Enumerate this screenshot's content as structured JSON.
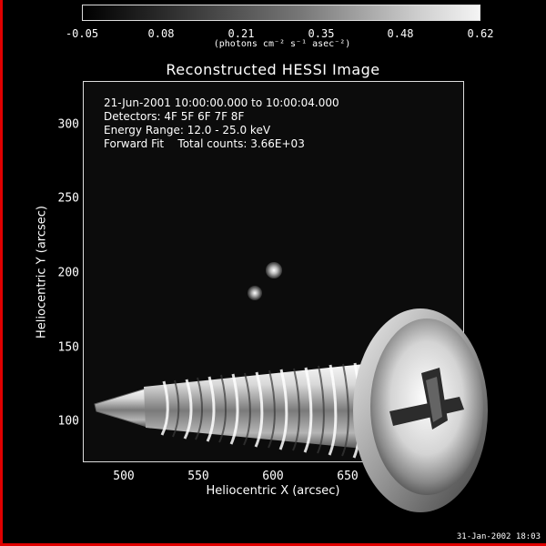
{
  "colorbar": {
    "tick_labels": [
      "-0.05",
      "0.08",
      "0.21",
      "0.35",
      "0.48",
      "0.62"
    ],
    "units": "(photons cm⁻² s⁻¹ asec⁻²)"
  },
  "plot": {
    "title": "Reconstructed HESSI Image",
    "info_lines": [
      "21-Jun-2001 10:00:00.000 to 10:00:04.000",
      "Detectors: 4F 5F 6F 7F 8F",
      "Energy Range: 12.0 - 25.0 keV",
      "Forward Fit    Total counts: 3.66E+03"
    ],
    "xlabel": "Heliocentric X (arcsec)",
    "ylabel": "Heliocentric Y (arcsec)",
    "x_ticks": [
      "500",
      "550",
      "600",
      "650"
    ],
    "y_ticks": [
      "300",
      "250",
      "200",
      "150",
      "100"
    ],
    "source_names": [
      "source-1",
      "source-2"
    ]
  },
  "footer": {
    "datestamp": "31-Jan-2002 18:03"
  },
  "overlay": {
    "object": "phillips-head-screw",
    "head_icon": "phillips-cross-icon"
  },
  "colors": {
    "accent": "#e00000",
    "background": "#000000",
    "plot_bg": "#0c0c0c",
    "text": "#ffffff"
  }
}
